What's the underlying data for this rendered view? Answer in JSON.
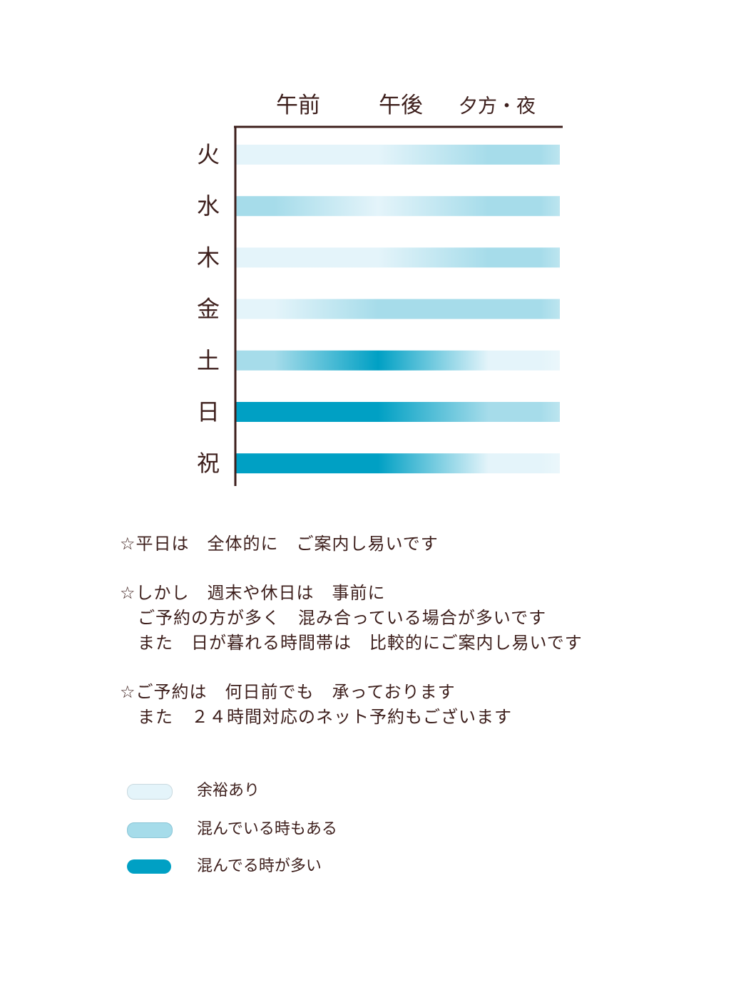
{
  "colors": {
    "low": "#e4f4fa",
    "mid": "#a6dcea",
    "high": "#00a0c4",
    "ink": "#3d1f1c"
  },
  "chart_data": {
    "type": "heatmap",
    "x_categories": [
      "午前",
      "午後",
      "夕方・夜"
    ],
    "y_categories": [
      "火",
      "水",
      "木",
      "金",
      "土",
      "日",
      "祝"
    ],
    "levels": {
      "1": "余裕あり",
      "2": "混んでいる時もある",
      "3": "混んでる時が多い"
    },
    "rows": [
      {
        "day": "火",
        "levels": [
          1,
          1,
          2
        ]
      },
      {
        "day": "水",
        "levels": [
          2,
          1,
          2
        ]
      },
      {
        "day": "木",
        "levels": [
          1,
          1,
          2
        ]
      },
      {
        "day": "金",
        "levels": [
          1,
          2,
          2
        ]
      },
      {
        "day": "土",
        "levels": [
          2,
          3,
          1
        ]
      },
      {
        "day": "日",
        "levels": [
          3,
          3,
          2
        ]
      },
      {
        "day": "祝",
        "levels": [
          3,
          3,
          1
        ]
      }
    ]
  },
  "notes": [
    [
      "☆平日は　全体的に　ご案内し易いです"
    ],
    [
      "☆しかし　週末や休日は　事前に",
      "　ご予約の方が多く　混み合っている場合が多いです",
      "　また　日が暮れる時間帯は　比較的にご案内し易いです"
    ],
    [
      "☆ご予約は　何日前でも　承っております",
      "　また　２４時間対応のネット予約もございます"
    ]
  ],
  "legend": [
    {
      "label": "余裕あり",
      "color": "#e4f4fa"
    },
    {
      "label": "混んでいる時もある",
      "color": "#a6dcea"
    },
    {
      "label": "混んでる時が多い",
      "color": "#00a0c4"
    }
  ]
}
